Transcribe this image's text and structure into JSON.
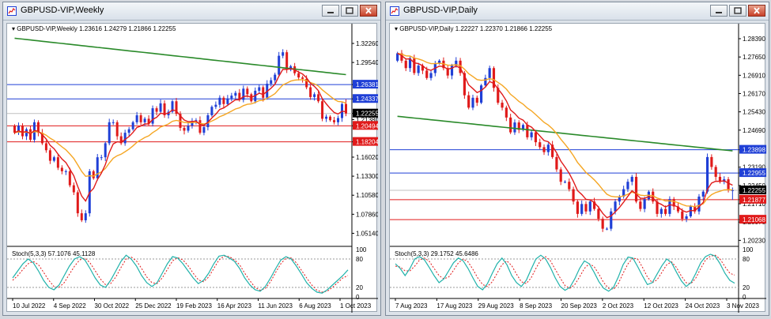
{
  "left_window": {
    "title": "GBPUSD-VIP,Weekly",
    "info": "GBPUSD-VIP,Weekly  1.23616 1.24279 1.21866 1.22255",
    "stoch_label": "Stoch(5,3,3) 57.1076 45.1128"
  },
  "right_window": {
    "title": "GBPUSD-VIP,Daily",
    "info": "GBPUSD-VIP,Daily  1.22227 1.22370 1.21866 1.22255",
    "stoch_label": "Stoch(5,3,3) 29.1752 45.6486"
  },
  "colors": {
    "bull": "#1f3fd6",
    "bear": "#e01a1a",
    "ma_fast": "#e01a1a",
    "ma_mid": "#f5a623",
    "ma_slow": "#2a8a2a",
    "stoch_main": "#20b2aa",
    "stoch_signal": "#e01a1a",
    "hline_blue": "#1f3fd6",
    "hline_red": "#e01a1a"
  },
  "chart_data": [
    {
      "type": "candlestick",
      "symbol": "GBPUSD-VIP",
      "timeframe": "Weekly",
      "ohlc_last": {
        "open": 1.23616,
        "high": 1.24279,
        "low": 1.21866,
        "close": 1.22255
      },
      "ylim": [
        1.035,
        1.335
      ],
      "y_ticks": [
        "1.32260",
        "1.29540",
        "1.26381",
        "1.24337",
        "1.22255",
        "1.21380",
        "1.20494",
        "1.18204",
        "1.16020",
        "1.13300",
        "1.10580",
        "1.07860",
        "1.05140"
      ],
      "x_ticks": [
        "10 Jul 2022",
        "4 Sep 2022",
        "30 Oct 2022",
        "25 Dec 2022",
        "19 Feb 2023",
        "16 Apr 2023",
        "11 Jun 2023",
        "6 Aug 2023",
        "1 Oct 2023"
      ],
      "hlines": [
        {
          "label": "1.26381",
          "value": 1.26381,
          "color": "blue"
        },
        {
          "label": "1.24337",
          "value": 1.24337,
          "color": "blue"
        },
        {
          "label": "1.20494",
          "value": 1.20494,
          "color": "red"
        },
        {
          "label": "1.18204",
          "value": 1.18204,
          "color": "red"
        }
      ],
      "price_tag": {
        "label": "1.22255",
        "value": 1.22255
      },
      "closes": [
        1.195,
        1.205,
        1.19,
        1.2,
        1.185,
        1.21,
        1.195,
        1.18,
        1.17,
        1.155,
        1.16,
        1.145,
        1.14,
        1.14,
        1.12,
        1.11,
        1.08,
        1.07,
        1.08,
        1.14,
        1.13,
        1.16,
        1.16,
        1.18,
        1.21,
        1.21,
        1.19,
        1.18,
        1.195,
        1.2,
        1.21,
        1.22,
        1.21,
        1.215,
        1.208,
        1.23,
        1.225,
        1.237,
        1.22,
        1.225,
        1.24,
        1.222,
        1.202,
        1.198,
        1.205,
        1.212,
        1.213,
        1.195,
        1.203,
        1.22,
        1.232,
        1.235,
        1.245,
        1.236,
        1.244,
        1.248,
        1.252,
        1.242,
        1.258,
        1.25,
        1.24,
        1.255,
        1.26,
        1.245,
        1.265,
        1.27,
        1.278,
        1.305,
        1.31,
        1.285,
        1.29,
        1.28,
        1.274,
        1.272,
        1.26,
        1.246,
        1.25,
        1.24,
        1.215,
        1.218,
        1.213,
        1.21,
        1.216,
        1.236,
        1.2226
      ],
      "ma_slow": {
        "start": 1.33,
        "end": 1.278
      },
      "stoch": {
        "ylim": [
          0,
          100
        ],
        "y_ticks": [
          "100",
          "80",
          "20",
          "0"
        ],
        "main": [
          40,
          55,
          70,
          80,
          72,
          55,
          35,
          20,
          15,
          25,
          45,
          65,
          80,
          85,
          78,
          60,
          40,
          25,
          20,
          35,
          55,
          75,
          88,
          80,
          65,
          45,
          30,
          22,
          30,
          50,
          70,
          85,
          82,
          70,
          55,
          40,
          28,
          35,
          50,
          70,
          86,
          88,
          82,
          75,
          60,
          40,
          25,
          15,
          12,
          22,
          40,
          60,
          78,
          85,
          80,
          65,
          48,
          30,
          18,
          10,
          8,
          15,
          25,
          35,
          45,
          57
        ],
        "signal": [
          35,
          45,
          58,
          70,
          75,
          68,
          52,
          35,
          22,
          20,
          30,
          48,
          65,
          78,
          82,
          72,
          55,
          38,
          26,
          28,
          42,
          62,
          80,
          84,
          76,
          60,
          42,
          30,
          28,
          40,
          58,
          76,
          83,
          78,
          66,
          50,
          36,
          32,
          42,
          60,
          78,
          86,
          85,
          78,
          68,
          50,
          34,
          20,
          14,
          18,
          32,
          52,
          70,
          82,
          82,
          72,
          56,
          40,
          25,
          14,
          10,
          12,
          20,
          30,
          40,
          45
        ]
      }
    },
    {
      "type": "candlestick",
      "symbol": "GBPUSD-VIP",
      "timeframe": "Daily",
      "ohlc_last": {
        "open": 1.22227,
        "high": 1.2237,
        "low": 1.21866,
        "close": 1.22255
      },
      "ylim": [
        1.2005,
        1.2855
      ],
      "y_ticks": [
        "1.28390",
        "1.27650",
        "1.26910",
        "1.26170",
        "1.25430",
        "1.24690",
        "1.23898",
        "1.23190",
        "1.22955",
        "1.22450",
        "1.22255",
        "1.21877",
        "1.21710",
        "1.21068",
        "1.20970",
        "1.20230"
      ],
      "x_ticks": [
        "7 Aug 2023",
        "17 Aug 2023",
        "29 Aug 2023",
        "8 Sep 2023",
        "20 Sep 2023",
        "2 Oct 2023",
        "12 Oct 2023",
        "24 Oct 2023",
        "3 Nov 2023"
      ],
      "hlines": [
        {
          "label": "1.23898",
          "value": 1.23898,
          "color": "blue"
        },
        {
          "label": "1.22955",
          "value": 1.22955,
          "color": "blue"
        },
        {
          "label": "1.21877",
          "value": 1.21877,
          "color": "red"
        },
        {
          "label": "1.21068",
          "value": 1.21068,
          "color": "red"
        }
      ],
      "price_tag": {
        "label": "1.22255",
        "value": 1.22255
      },
      "closes": [
        1.278,
        1.275,
        1.272,
        1.276,
        1.27,
        1.273,
        1.271,
        1.268,
        1.27,
        1.274,
        1.275,
        1.272,
        1.269,
        1.273,
        1.275,
        1.27,
        1.261,
        1.256,
        1.26,
        1.258,
        1.265,
        1.268,
        1.272,
        1.264,
        1.258,
        1.256,
        1.252,
        1.246,
        1.25,
        1.247,
        1.249,
        1.244,
        1.246,
        1.242,
        1.24,
        1.238,
        1.241,
        1.236,
        1.231,
        1.226,
        1.226,
        1.223,
        1.218,
        1.213,
        1.217,
        1.214,
        1.218,
        1.215,
        1.211,
        1.207,
        1.207,
        1.214,
        1.218,
        1.22,
        1.223,
        1.226,
        1.228,
        1.218,
        1.215,
        1.219,
        1.222,
        1.218,
        1.213,
        1.215,
        1.213,
        1.219,
        1.216,
        1.214,
        1.211,
        1.212,
        1.216,
        1.214,
        1.22,
        1.222,
        1.236,
        1.232,
        1.228,
        1.226,
        1.227,
        1.223,
        1.2226
      ],
      "ma_slow": {
        "start": 1.2525,
        "end": 1.2385
      },
      "stoch": {
        "ylim": [
          0,
          100
        ],
        "y_ticks": [
          "100",
          "80",
          "20",
          "0"
        ],
        "main": [
          70,
          60,
          45,
          60,
          80,
          85,
          78,
          62,
          45,
          30,
          38,
          55,
          72,
          82,
          76,
          60,
          40,
          22,
          15,
          28,
          50,
          70,
          82,
          68,
          45,
          30,
          22,
          35,
          58,
          80,
          88,
          80,
          62,
          40,
          22,
          14,
          20,
          38,
          60,
          76,
          70,
          52,
          32,
          18,
          12,
          20,
          42,
          68,
          84,
          82,
          64,
          44,
          26,
          30,
          48,
          66,
          80,
          72,
          52,
          34,
          22,
          30,
          50,
          72,
          85,
          90,
          86,
          70,
          50,
          35,
          29
        ],
        "signal": [
          65,
          63,
          55,
          55,
          65,
          78,
          82,
          75,
          60,
          45,
          38,
          42,
          56,
          72,
          80,
          74,
          58,
          40,
          26,
          22,
          32,
          50,
          68,
          76,
          66,
          48,
          32,
          28,
          40,
          60,
          78,
          85,
          76,
          58,
          40,
          24,
          18,
          26,
          42,
          60,
          70,
          64,
          48,
          30,
          18,
          16,
          28,
          50,
          70,
          82,
          80,
          62,
          42,
          30,
          36,
          52,
          68,
          74,
          62,
          44,
          30,
          28,
          40,
          60,
          78,
          86,
          88,
          80,
          64,
          50,
          46
        ]
      }
    }
  ]
}
